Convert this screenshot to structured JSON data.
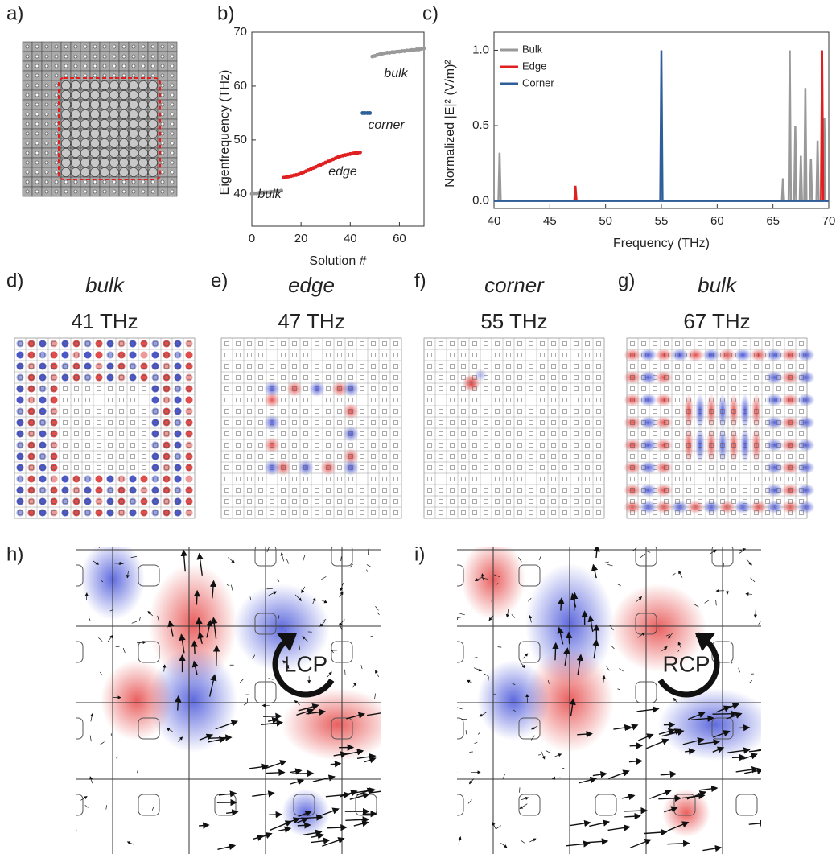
{
  "chart_data": [
    {
      "type": "scatter",
      "x_label": "Solution #",
      "y_label": "Eigenfrequency (THz)",
      "xlim": [
        0,
        70
      ],
      "ylim": [
        34,
        70
      ],
      "xticks": [
        0,
        20,
        40,
        60
      ],
      "yticks": [
        40,
        50,
        60,
        70
      ],
      "series": [
        {
          "annotation": "bulk",
          "color": "#999999",
          "x": [
            0,
            1,
            2,
            3,
            4,
            5,
            6,
            7,
            8,
            9,
            10,
            11,
            12
          ],
          "values": [
            40.0,
            40.1,
            40.1,
            40.2,
            40.2,
            40.3,
            40.3,
            40.3,
            40.4,
            40.4,
            40.5,
            40.5,
            40.6
          ]
        },
        {
          "annotation": "edge",
          "color": "#e02020",
          "x": [
            13,
            14,
            15,
            16,
            17,
            18,
            19,
            20,
            21,
            22,
            23,
            24,
            25,
            26,
            27,
            28,
            29,
            30,
            31,
            32,
            33,
            34,
            35,
            36,
            37,
            38,
            39,
            40,
            41,
            42,
            43,
            44
          ],
          "values": [
            43.0,
            43.1,
            43.2,
            43.3,
            43.4,
            43.5,
            43.6,
            43.8,
            44.0,
            44.2,
            44.4,
            44.6,
            44.8,
            45.0,
            45.2,
            45.4,
            45.6,
            45.8,
            46.0,
            46.2,
            46.4,
            46.6,
            46.8,
            47.0,
            47.1,
            47.2,
            47.3,
            47.4,
            47.5,
            47.6,
            47.6,
            47.7
          ]
        },
        {
          "annotation": "corner",
          "color": "#2f5f9a",
          "x": [
            45,
            46,
            47,
            48
          ],
          "values": [
            55.0,
            55.0,
            55.0,
            55.0
          ]
        },
        {
          "annotation": "bulk",
          "color": "#999999",
          "x": [
            49,
            50,
            51,
            52,
            53,
            54,
            55,
            56,
            57,
            58,
            59,
            60,
            61,
            62,
            63,
            64,
            65,
            66,
            67,
            68,
            69,
            70
          ],
          "values": [
            65.5,
            65.6,
            65.8,
            65.9,
            66.0,
            66.1,
            66.2,
            66.2,
            66.3,
            66.3,
            66.4,
            66.4,
            66.5,
            66.5,
            66.6,
            66.6,
            66.7,
            66.7,
            66.8,
            66.8,
            66.9,
            67.0
          ]
        }
      ]
    },
    {
      "type": "line",
      "x_label": "Frequency (THz)",
      "y_label": "Normalized |E|² (V/m)²",
      "xlim": [
        40,
        70
      ],
      "ylim": [
        -0.05,
        1.12
      ],
      "xticks": [
        40,
        45,
        50,
        55,
        60,
        65,
        70
      ],
      "yticks": [
        {
          "value": 0,
          "label": "0.0"
        },
        {
          "value": 0.5,
          "label": "0.5"
        },
        {
          "value": 1,
          "label": "1.0"
        }
      ],
      "legend": "upper left",
      "series": [
        {
          "name": "Bulk",
          "color": "#999999",
          "x": [
            40,
            40.4,
            40.5,
            40.6,
            65.8,
            65.9,
            66.0,
            66.4,
            66.5,
            66.6,
            66.9,
            67.0,
            67.1,
            67.4,
            67.5,
            67.6,
            67.8,
            67.9,
            68.0,
            68.3,
            68.4,
            68.5,
            68.9,
            69.0,
            69.1,
            69.5,
            69.6,
            69.7,
            70
          ],
          "values": [
            0,
            0,
            0.32,
            0,
            0,
            0.15,
            0,
            0,
            1.0,
            0,
            0,
            0.5,
            0,
            0,
            0.3,
            0,
            0,
            0.75,
            0,
            0,
            0.28,
            0,
            0,
            0.4,
            0,
            0,
            0.55,
            0,
            0
          ]
        },
        {
          "name": "Edge",
          "color": "#e02020",
          "x": [
            47.2,
            47.3,
            47.4,
            58,
            69.3,
            69.4,
            69.5
          ],
          "values": [
            0,
            0.1,
            0,
            null,
            0,
            1.0,
            0
          ]
        },
        {
          "name": "Corner",
          "color": "#2f5f9a",
          "x": [
            40,
            54.9,
            55.0,
            55.1,
            70
          ],
          "values": [
            0,
            0,
            1.0,
            0,
            0
          ]
        }
      ]
    }
  ],
  "panels": {
    "labels": [
      "a)",
      "b)",
      "c)",
      "d)",
      "e)",
      "f)",
      "g)",
      "h)",
      "i)"
    ],
    "modes": [
      {
        "mode": "bulk",
        "frequency": "41 THz"
      },
      {
        "mode": "edge",
        "frequency": "47 THz"
      },
      {
        "mode": "corner",
        "frequency": "55 THz"
      },
      {
        "mode": "bulk",
        "frequency": "67 THz"
      }
    ],
    "polarizations": [
      "LCP",
      "RCP"
    ]
  }
}
